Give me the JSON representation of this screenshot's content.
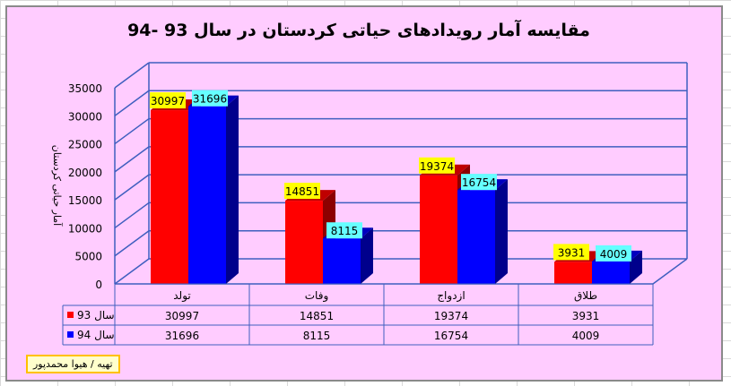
{
  "chart_data": {
    "type": "bar",
    "title": "مقایسه آمار رویدادهای حیاتی کردستان در سال 93 -94",
    "ylabel": "آمار حیاتی کردستان",
    "ylim": [
      0,
      35000
    ],
    "yticks": [
      0,
      5000,
      10000,
      15000,
      20000,
      25000,
      30000,
      35000
    ],
    "categories": [
      "تولد",
      "وفات",
      "ازدواج",
      "طلاق"
    ],
    "series": [
      {
        "name": "سال 93",
        "values": [
          30997,
          14851,
          19374,
          3931
        ],
        "color": "#ff0000",
        "label_bg": "#ffff00"
      },
      {
        "name": "سال 94",
        "values": [
          31696,
          8115,
          16754,
          4009
        ],
        "color": "#0000ff",
        "label_bg": "#66ffff"
      }
    ],
    "data_table": true,
    "grid": true
  },
  "credit": "تهیه / هیوا محمدپور"
}
